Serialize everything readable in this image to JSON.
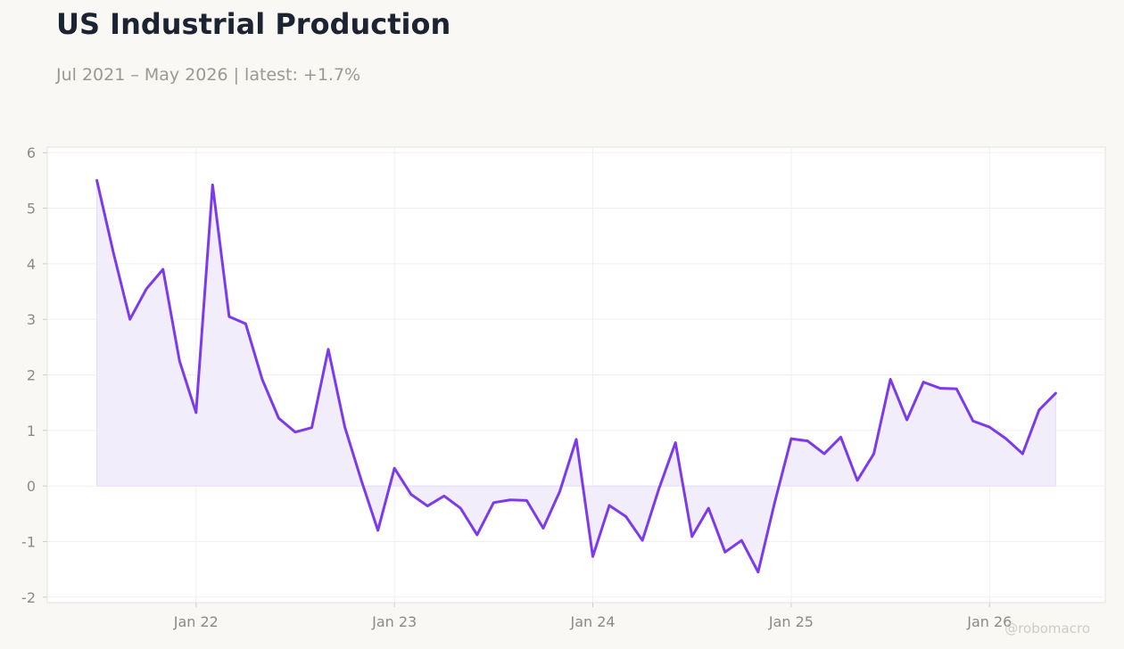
{
  "header": {
    "title": "US Industrial Production",
    "subtitle": "Jul 2021 – May 2026 | latest: +1.7%"
  },
  "watermark": "@robomacro",
  "colors": {
    "line": "#7c3aed",
    "fill": "#f1ecfb",
    "background": "#f9f8f5",
    "plot_background": "#ffffff",
    "grid": "#efefee",
    "title": "#1c2333",
    "muted": "#9b9890"
  },
  "chart_data": {
    "type": "area",
    "title": "US Industrial Production",
    "xlabel": "",
    "ylabel": "",
    "ylim": [
      -2.1,
      6.1
    ],
    "y_ticks": [
      -2,
      -1,
      0,
      1,
      2,
      3,
      4,
      5,
      6
    ],
    "y_tick_labels": [
      "-2",
      "-1",
      "0",
      "1",
      "2",
      "3",
      "4",
      "5",
      "6"
    ],
    "x_ticks": [
      {
        "date": "2022-01",
        "label": "Jan 22"
      },
      {
        "date": "2023-01",
        "label": "Jan 23"
      },
      {
        "date": "2024-01",
        "label": "Jan 24"
      },
      {
        "date": "2025-01",
        "label": "Jan 25"
      },
      {
        "date": "2026-01",
        "label": "Jan 26"
      }
    ],
    "xlim": [
      "2021-04",
      "2026-08"
    ],
    "grid": true,
    "series": [
      {
        "x": [
          "2021-07",
          "2021-08",
          "2021-09",
          "2021-10",
          "2021-11",
          "2021-12",
          "2022-01",
          "2022-02",
          "2022-03",
          "2022-04",
          "2022-05",
          "2022-06",
          "2022-07",
          "2022-08",
          "2022-09",
          "2022-10",
          "2022-11",
          "2022-12",
          "2023-01",
          "2023-02",
          "2023-03",
          "2023-04",
          "2023-05",
          "2023-06",
          "2023-07",
          "2023-08",
          "2023-09",
          "2023-10",
          "2023-11",
          "2023-12",
          "2024-01",
          "2024-02",
          "2024-03",
          "2024-04",
          "2024-05",
          "2024-06",
          "2024-07",
          "2024-08",
          "2024-09",
          "2024-10",
          "2024-11",
          "2024-12",
          "2025-01",
          "2025-02",
          "2025-03",
          "2025-04",
          "2025-05",
          "2025-06",
          "2025-07",
          "2025-08",
          "2025-09",
          "2025-10",
          "2025-11",
          "2025-12",
          "2026-01",
          "2026-02",
          "2026-03",
          "2026-04",
          "2026-05"
        ],
        "values": [
          5.5,
          4.2,
          3.0,
          3.55,
          3.9,
          2.25,
          1.32,
          5.42,
          3.05,
          2.92,
          1.92,
          1.22,
          0.97,
          1.05,
          2.46,
          1.06,
          0.1,
          -0.8,
          0.32,
          -0.15,
          -0.36,
          -0.18,
          -0.4,
          -0.88,
          -0.3,
          -0.25,
          -0.26,
          -0.76,
          -0.1,
          0.84,
          -1.27,
          -0.35,
          -0.55,
          -0.98,
          -0.05,
          0.78,
          -0.91,
          -0.4,
          -1.19,
          -0.98,
          -1.55,
          -0.3,
          0.85,
          0.81,
          0.58,
          0.88,
          0.1,
          0.58,
          1.92,
          1.19,
          1.87,
          1.76,
          1.75,
          1.17,
          1.06,
          0.85,
          0.58,
          1.37,
          1.67
        ]
      }
    ]
  }
}
